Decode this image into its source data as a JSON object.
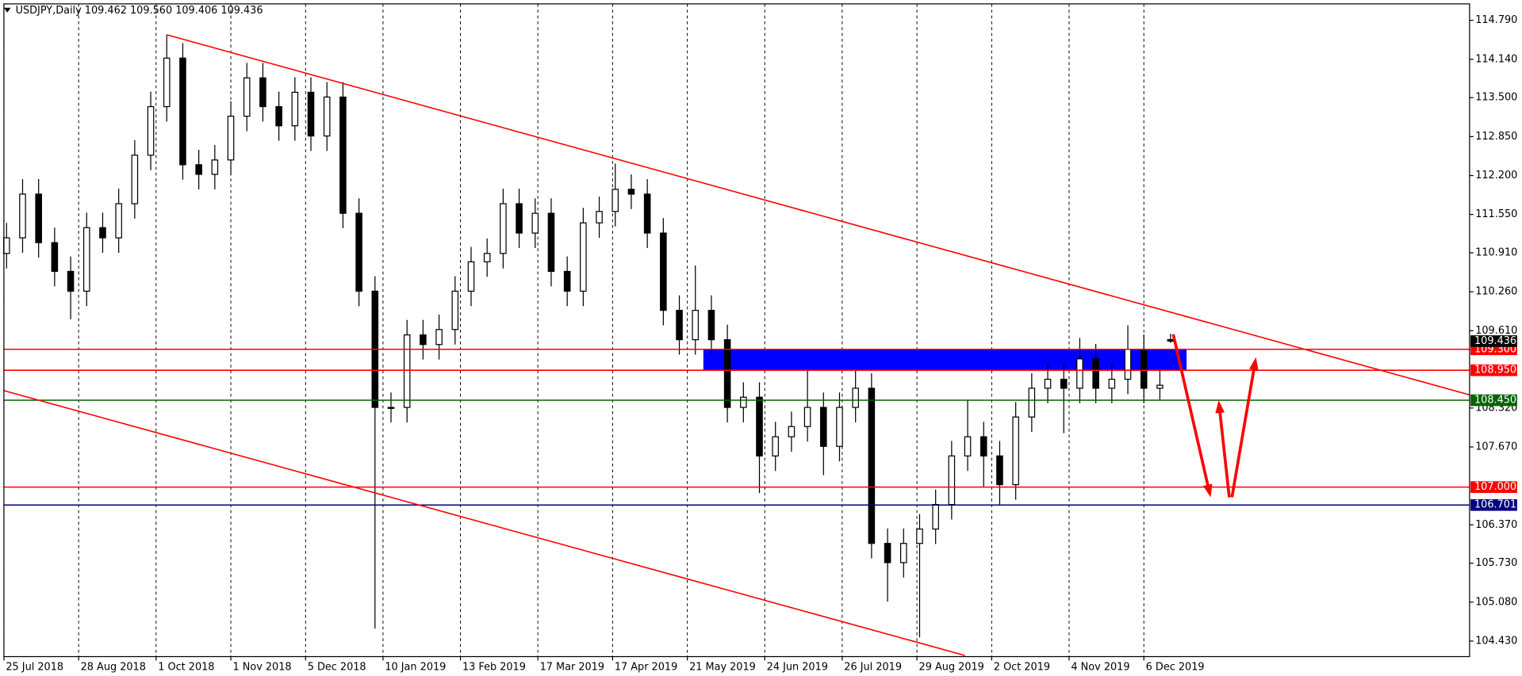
{
  "chart_data": {
    "type": "candlestick",
    "title": "USDJPY,Daily 109.462 109.560 109.406 109.436",
    "xlim": [
      0,
      549
    ],
    "ylim": [
      104.171,
      115.065
    ],
    "xticks": [
      {
        "value": 0,
        "label": "25 Jul 2018"
      },
      {
        "value": 28,
        "label": "28 Aug 2018"
      },
      {
        "value": 57,
        "label": "1 Oct 2018"
      },
      {
        "value": 85,
        "label": "1 Nov 2018"
      },
      {
        "value": 113,
        "label": "5 Dec 2018"
      },
      {
        "value": 142,
        "label": "10 Jan 2019"
      },
      {
        "value": 171,
        "label": "13 Feb 2019"
      },
      {
        "value": 200,
        "label": "17 Mar 2019"
      },
      {
        "value": 228,
        "label": "17 Apr 2019"
      },
      {
        "value": 256,
        "label": "21 May 2019"
      },
      {
        "value": 285,
        "label": "24 Jun 2019"
      },
      {
        "value": 314,
        "label": "26 Jul 2019"
      },
      {
        "value": 342,
        "label": "29 Aug 2019"
      },
      {
        "value": 370,
        "label": "2 Oct 2019"
      },
      {
        "value": 399,
        "label": "4 Nov 2019"
      },
      {
        "value": 427,
        "label": "6 Dec 2019"
      }
    ],
    "yticks": [
      {
        "value": 114.79,
        "label": "114.790"
      },
      {
        "value": 114.14,
        "label": "114.140"
      },
      {
        "value": 113.5,
        "label": "113.500"
      },
      {
        "value": 112.85,
        "label": "112.850"
      },
      {
        "value": 112.2,
        "label": "112.200"
      },
      {
        "value": 111.55,
        "label": "111.550"
      },
      {
        "value": 110.91,
        "label": "110.910"
      },
      {
        "value": 110.26,
        "label": "110.260"
      },
      {
        "value": 109.61,
        "label": "109.610"
      },
      {
        "value": 108.32,
        "label": "108.320"
      },
      {
        "value": 107.67,
        "label": "107.670"
      },
      {
        "value": 106.37,
        "label": "106.370"
      },
      {
        "value": 105.73,
        "label": "105.730"
      },
      {
        "value": 105.08,
        "label": "105.080"
      },
      {
        "value": 104.43,
        "label": "104.430"
      }
    ],
    "x": [
      1,
      7,
      13,
      19,
      25,
      31,
      37,
      43,
      49,
      55,
      61,
      67,
      73,
      79,
      85,
      91,
      97,
      103,
      109,
      115,
      121,
      127,
      133,
      139,
      145,
      151,
      157,
      163,
      169,
      175,
      181,
      187,
      193,
      199,
      205,
      211,
      217,
      223,
      229,
      235,
      241,
      247,
      253,
      259,
      265,
      271,
      277,
      283,
      289,
      295,
      301,
      307,
      313,
      319,
      325,
      331,
      337,
      343,
      349,
      355,
      361,
      367,
      373,
      379,
      385,
      391,
      397,
      403,
      409,
      415,
      421,
      427,
      433,
      437
    ],
    "open": [
      110.9,
      111.16,
      111.89,
      111.08,
      110.6,
      110.27,
      111.33,
      111.16,
      111.73,
      112.54,
      113.35,
      114.16,
      112.38,
      112.22,
      112.46,
      113.19,
      113.83,
      113.35,
      113.03,
      113.59,
      112.86,
      113.51,
      111.57,
      110.27,
      108.33,
      108.33,
      109.54,
      109.38,
      109.63,
      110.27,
      110.76,
      110.9,
      111.73,
      111.24,
      111.57,
      110.6,
      110.27,
      111.41,
      111.6,
      111.97,
      111.89,
      111.24,
      109.95,
      109.46,
      109.95,
      109.46,
      108.33,
      108.5,
      107.52,
      107.84,
      108.01,
      108.33,
      107.68,
      108.33,
      108.65,
      106.06,
      105.74,
      106.06,
      106.3,
      106.71,
      107.52,
      107.84,
      107.52,
      107.04,
      108.17,
      108.65,
      108.8,
      108.65,
      109.14,
      108.65,
      108.8,
      109.3,
      108.65,
      109.462
    ],
    "high": [
      111.41,
      112.14,
      112.14,
      111.33,
      110.85,
      111.58,
      111.58,
      111.98,
      112.79,
      113.6,
      114.55,
      114.41,
      112.63,
      112.71,
      113.44,
      114.08,
      114.08,
      113.6,
      113.84,
      113.84,
      113.76,
      113.76,
      111.82,
      110.52,
      108.58,
      109.79,
      109.79,
      109.88,
      110.52,
      111.01,
      111.15,
      111.98,
      111.98,
      111.82,
      111.82,
      110.85,
      111.66,
      111.85,
      112.4,
      112.22,
      112.14,
      111.49,
      110.2,
      110.7,
      110.2,
      109.71,
      108.75,
      108.75,
      108.09,
      108.26,
      108.95,
      108.58,
      108.58,
      108.95,
      108.9,
      106.31,
      106.31,
      106.55,
      106.96,
      107.77,
      108.45,
      108.09,
      107.77,
      108.42,
      108.9,
      109.05,
      109.05,
      109.49,
      109.39,
      109.05,
      109.7,
      109.55,
      108.95,
      109.56
    ],
    "low": [
      110.65,
      110.91,
      110.83,
      110.35,
      109.8,
      110.02,
      110.91,
      110.91,
      111.48,
      112.29,
      113.1,
      112.13,
      111.97,
      111.97,
      112.21,
      112.94,
      113.1,
      112.78,
      112.78,
      112.61,
      112.61,
      111.32,
      110.02,
      104.64,
      108.08,
      108.08,
      109.13,
      109.13,
      109.38,
      110.02,
      110.51,
      110.65,
      110.99,
      110.99,
      110.35,
      110.02,
      110.02,
      111.16,
      111.35,
      111.64,
      110.99,
      109.7,
      109.21,
      109.21,
      109.21,
      108.08,
      108.08,
      106.9,
      107.27,
      107.59,
      107.76,
      107.2,
      107.43,
      108.08,
      105.81,
      105.09,
      105.49,
      104.49,
      106.05,
      106.46,
      107.27,
      107.0,
      106.7,
      106.79,
      107.92,
      108.4,
      107.9,
      108.4,
      108.4,
      108.4,
      108.55,
      108.4,
      108.45,
      109.406
    ],
    "close": [
      111.16,
      111.89,
      111.08,
      110.6,
      110.27,
      111.33,
      111.16,
      111.73,
      112.54,
      113.35,
      114.16,
      112.38,
      112.22,
      112.46,
      113.19,
      113.83,
      113.35,
      113.03,
      113.59,
      112.86,
      113.51,
      111.57,
      110.27,
      108.33,
      108.33,
      109.54,
      109.38,
      109.63,
      110.27,
      110.76,
      110.9,
      111.73,
      111.24,
      111.57,
      110.6,
      110.27,
      111.41,
      111.6,
      111.97,
      111.89,
      111.24,
      109.95,
      109.46,
      109.95,
      109.46,
      108.33,
      108.5,
      107.52,
      107.84,
      108.01,
      108.33,
      107.68,
      108.33,
      108.65,
      106.06,
      105.74,
      106.06,
      106.3,
      106.71,
      107.52,
      107.84,
      107.52,
      107.04,
      108.17,
      108.65,
      108.8,
      108.65,
      109.14,
      108.65,
      108.8,
      109.3,
      108.65,
      108.7,
      109.436
    ],
    "zone": {
      "x": [
        262,
        443
      ],
      "y": [
        109.3,
        108.95
      ],
      "color": "#0000ff"
    },
    "levels": [
      {
        "value": 109.3,
        "label": "109.300",
        "color": "#ff0000"
      },
      {
        "value": 108.95,
        "label": "108.950",
        "color": "#ff0000"
      },
      {
        "value": 108.45,
        "label": "108.450",
        "color": "#006400"
      },
      {
        "value": 107.0,
        "label": "107.000",
        "color": "#ff0000"
      },
      {
        "value": 106.701,
        "label": "106.701",
        "color": "#000080"
      }
    ],
    "price_tag": {
      "value": 109.436,
      "label": "109.436",
      "color": "#000000"
    },
    "trendlines": [
      {
        "x": [
          61,
          549
        ],
        "y": [
          114.55,
          108.54
        ],
        "color": "#ff0000"
      },
      {
        "x": [
          0,
          360
        ],
        "y": [
          108.61,
          104.19
        ],
        "color": "#ff0000"
      }
    ],
    "arrows": [
      {
        "x": [
          438,
          452
        ],
        "y": [
          109.55,
          106.83
        ],
        "color": "#ff0000"
      },
      {
        "x": [
          459,
          455
        ],
        "y": [
          106.83,
          108.45
        ],
        "color": "#ff0000"
      },
      {
        "x": [
          460,
          469
        ],
        "y": [
          106.83,
          109.17
        ],
        "color": "#ff0000"
      }
    ]
  }
}
